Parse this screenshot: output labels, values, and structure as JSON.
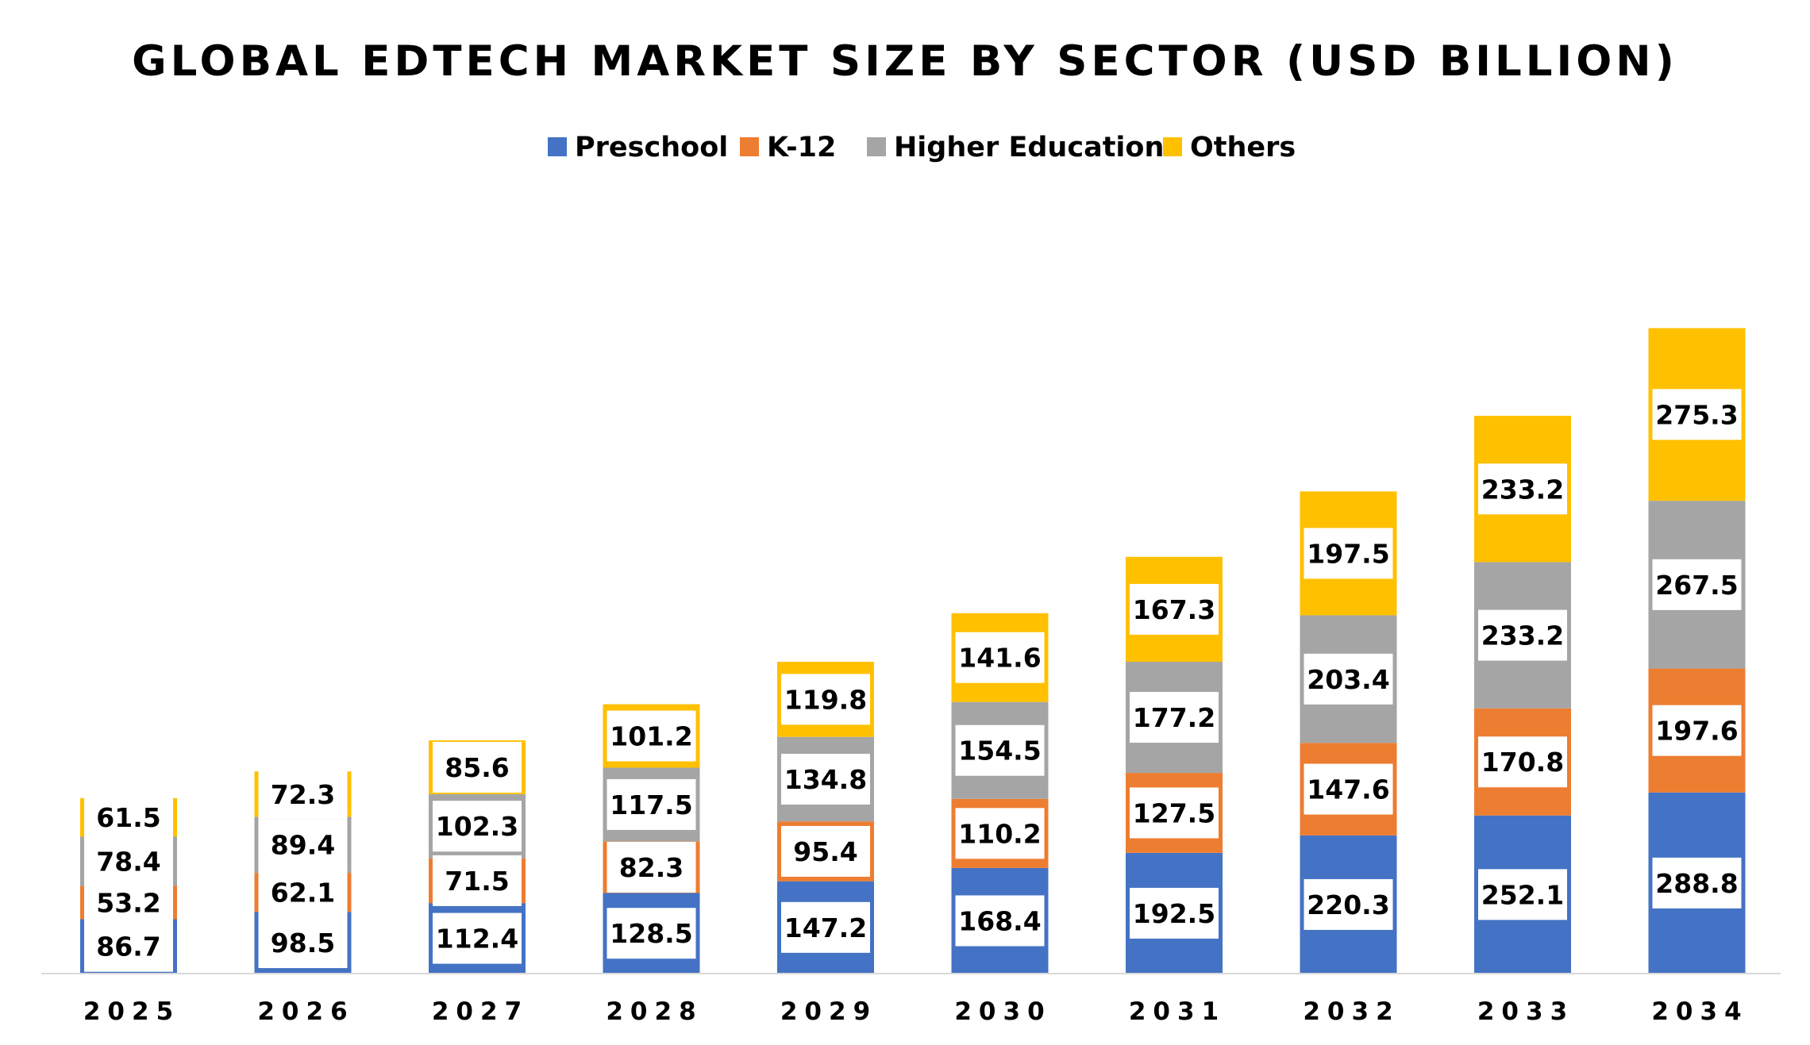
{
  "chart_data": {
    "type": "bar",
    "stacked": true,
    "title": "GLOBAL EDTECH MARKET SIZE BY SECTOR (USD BILLION)",
    "xlabel": "",
    "ylabel": "",
    "categories": [
      "2025",
      "2026",
      "2027",
      "2028",
      "2029",
      "2030",
      "2031",
      "2032",
      "2033",
      "2034"
    ],
    "series": [
      {
        "name": "Preschool",
        "color": "#4472C4",
        "values": [
          86.7,
          98.5,
          112.4,
          128.5,
          147.2,
          168.4,
          192.5,
          220.3,
          252.1,
          288.8
        ]
      },
      {
        "name": "K-12",
        "color": "#ED7D31",
        "values": [
          53.2,
          62.1,
          71.5,
          82.3,
          95.4,
          110.2,
          127.5,
          147.6,
          170.8,
          197.6
        ]
      },
      {
        "name": "Higher Education",
        "color": "#A5A5A5",
        "values": [
          78.4,
          89.4,
          102.3,
          117.5,
          134.8,
          154.5,
          177.2,
          203.4,
          233.2,
          267.5
        ]
      },
      {
        "name": "Others",
        "color": "#FFC000",
        "values": [
          61.5,
          72.3,
          85.6,
          101.2,
          119.8,
          141.6,
          167.3,
          197.5,
          233.2,
          275.3
        ]
      }
    ],
    "ylim": [
      0,
      1040
    ],
    "grid": false,
    "legend_position": "top-center",
    "data_labels": true
  }
}
